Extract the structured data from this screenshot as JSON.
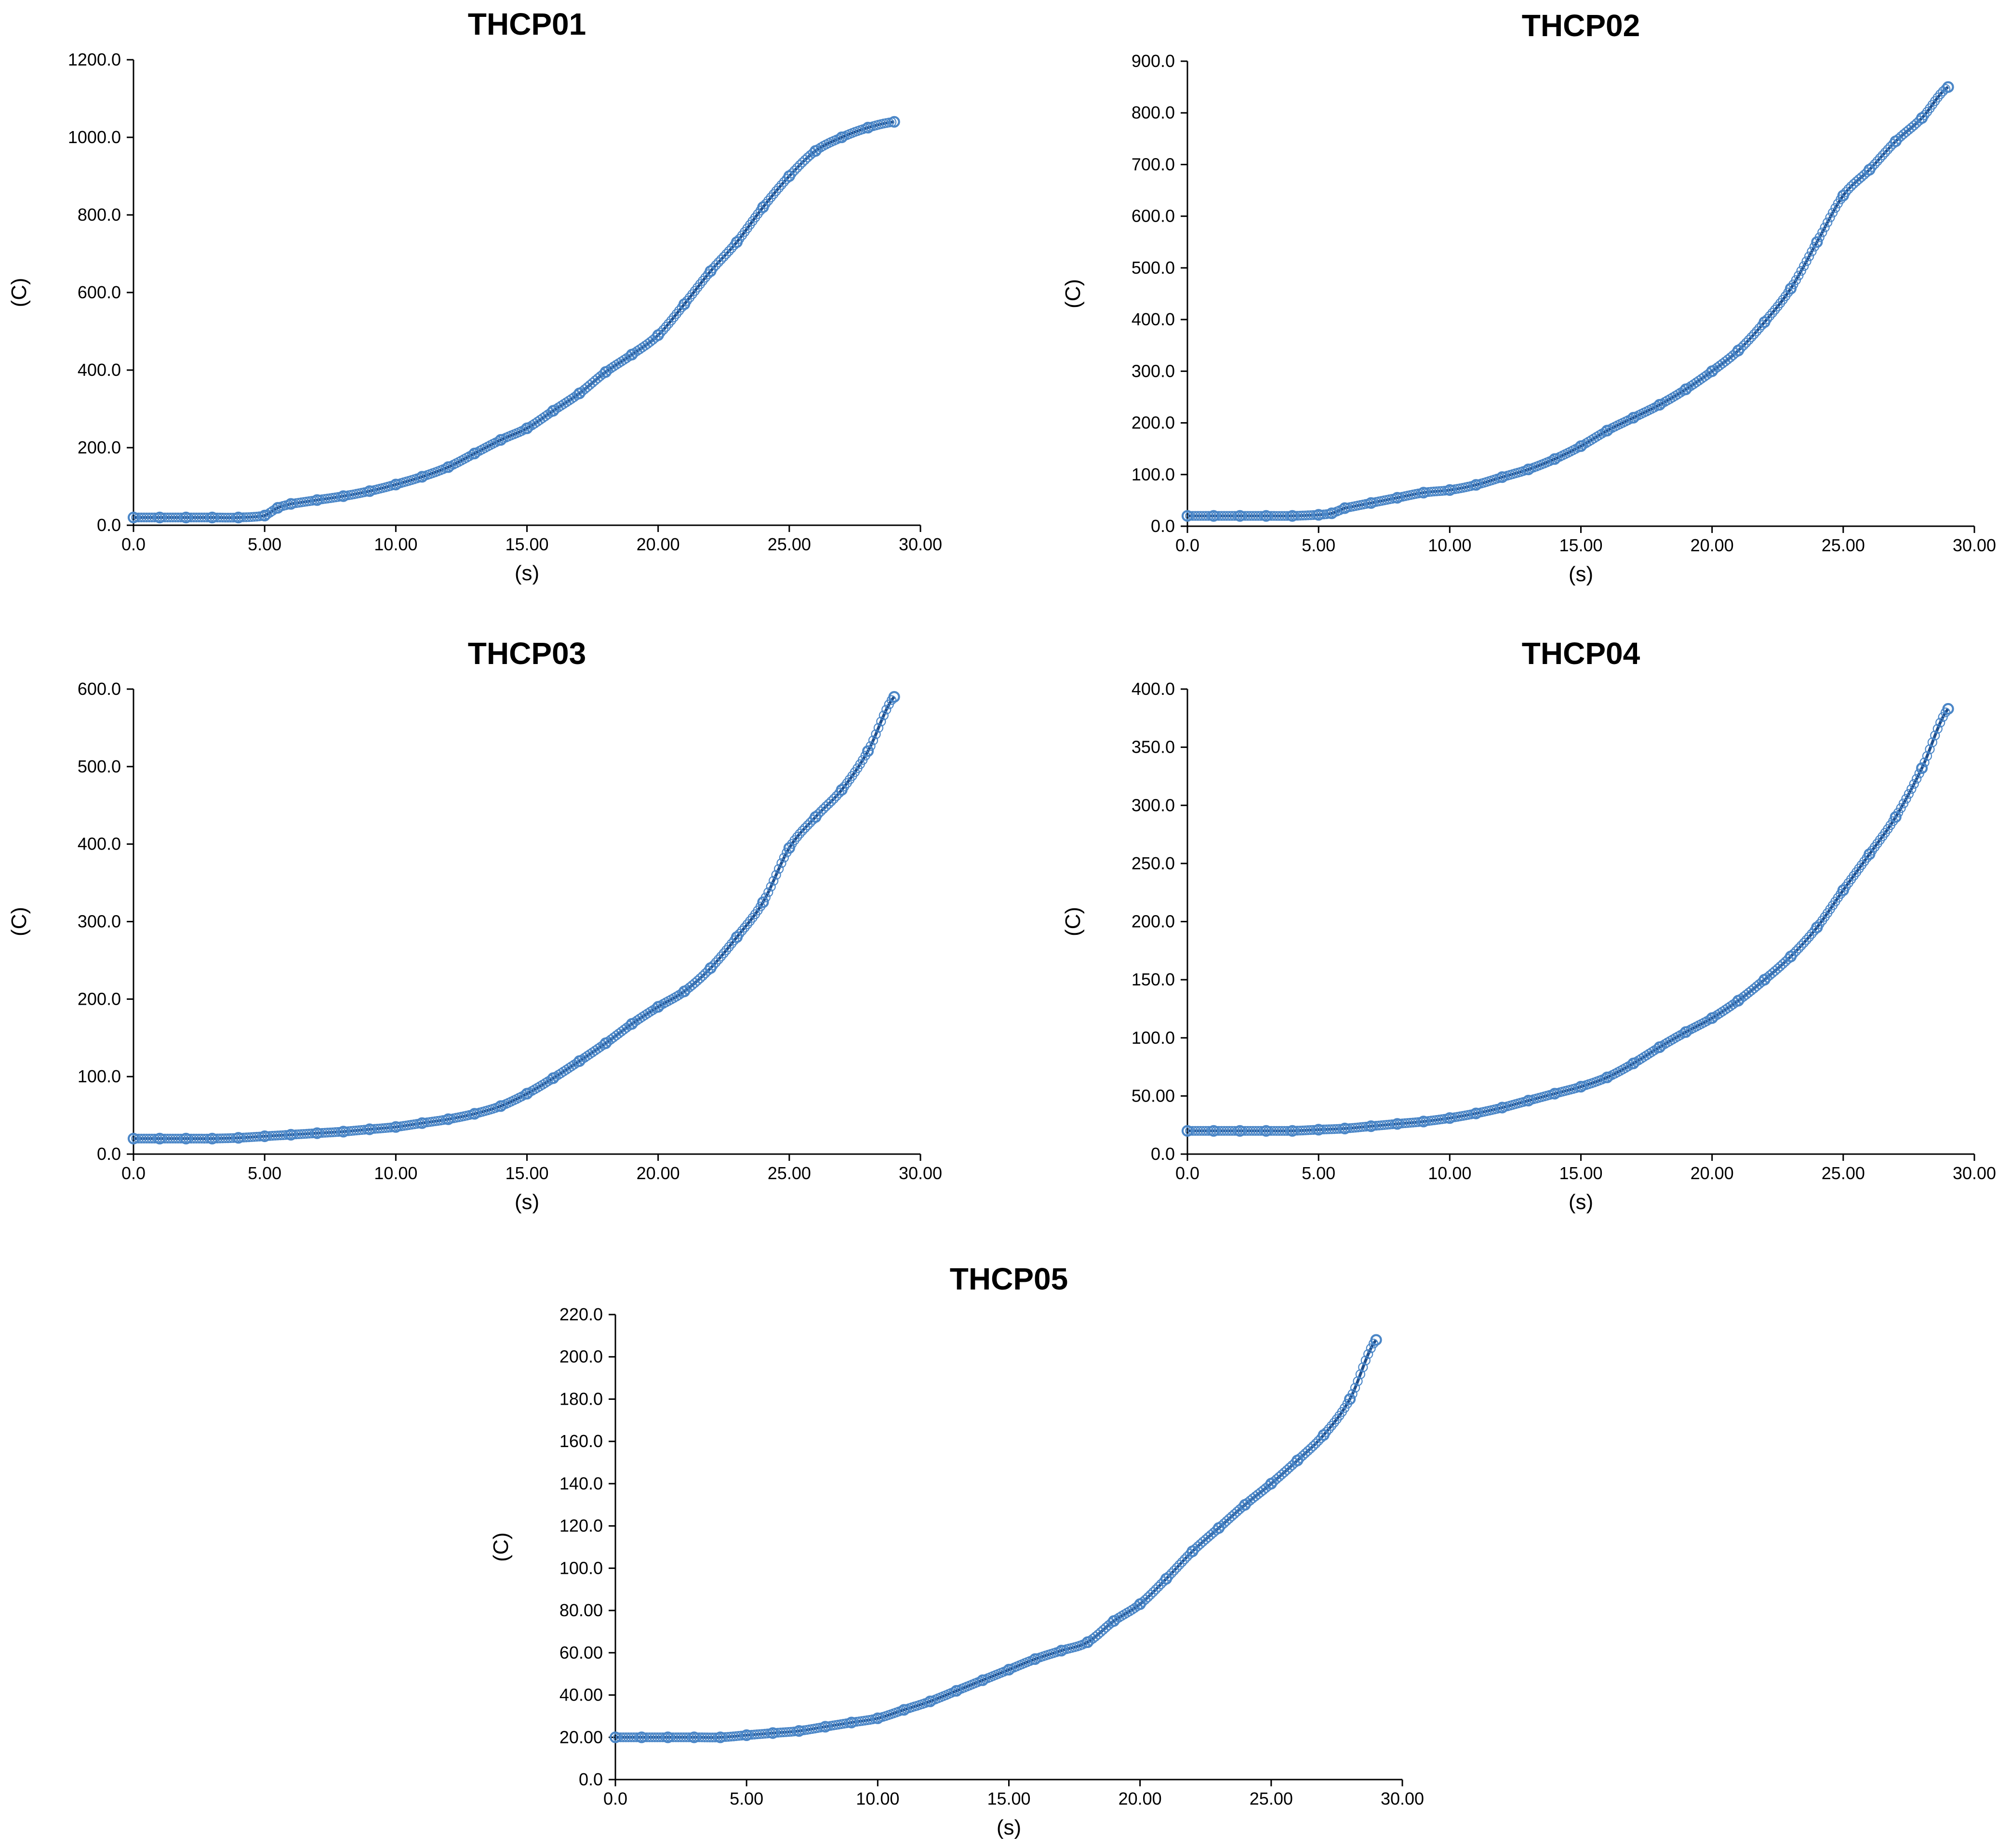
{
  "chart_data": [
    {
      "type": "line",
      "title": "THCP01",
      "xlabel": "(s)",
      "ylabel": "(C)",
      "xlim": [
        0,
        30
      ],
      "ylim": [
        0,
        1200
      ],
      "xticks": [
        "0.0",
        "5.00",
        "10.00",
        "15.00",
        "20.00",
        "25.00",
        "30.00"
      ],
      "yticks": [
        "0.0",
        "200.0",
        "400.0",
        "600.0",
        "800.0",
        "1000.0",
        "1200.0"
      ],
      "grid": false,
      "series": [
        {
          "x": [
            0,
            1,
            2,
            3,
            4,
            5,
            5.5,
            6,
            7,
            8,
            9,
            10,
            11,
            12,
            13,
            14,
            15,
            16,
            17,
            18,
            19,
            20,
            21,
            22,
            23,
            24,
            25,
            26,
            27,
            28,
            29
          ],
          "y": [
            20,
            20,
            20,
            20,
            20,
            25,
            45,
            55,
            65,
            75,
            88,
            105,
            125,
            150,
            185,
            220,
            250,
            295,
            340,
            395,
            440,
            490,
            570,
            655,
            730,
            820,
            900,
            965,
            1000,
            1025,
            1040
          ]
        }
      ]
    },
    {
      "type": "line",
      "title": "THCP02",
      "xlabel": "(s)",
      "ylabel": "(C)",
      "xlim": [
        0,
        30
      ],
      "ylim": [
        0,
        900
      ],
      "xticks": [
        "0.0",
        "5.00",
        "10.00",
        "15.00",
        "20.00",
        "25.00",
        "30.00"
      ],
      "yticks": [
        "0.0",
        "100.0",
        "200.0",
        "300.0",
        "400.0",
        "500.0",
        "600.0",
        "700.0",
        "800.0",
        "900.0"
      ],
      "grid": false,
      "series": [
        {
          "x": [
            0,
            1,
            2,
            3,
            4,
            5,
            5.5,
            6,
            7,
            8,
            9,
            10,
            11,
            12,
            13,
            14,
            15,
            16,
            17,
            18,
            19,
            20,
            21,
            22,
            23,
            24,
            25,
            26,
            27,
            28,
            29
          ],
          "y": [
            20,
            20,
            20,
            20,
            20,
            22,
            25,
            35,
            45,
            55,
            65,
            70,
            80,
            95,
            110,
            130,
            155,
            185,
            210,
            235,
            265,
            300,
            340,
            395,
            460,
            550,
            640,
            690,
            745,
            790,
            850
          ]
        }
      ]
    },
    {
      "type": "line",
      "title": "THCP03",
      "xlabel": "(s)",
      "ylabel": "(C)",
      "xlim": [
        0,
        30
      ],
      "ylim": [
        0,
        600
      ],
      "xticks": [
        "0.0",
        "5.00",
        "10.00",
        "15.00",
        "20.00",
        "25.00",
        "30.00"
      ],
      "yticks": [
        "0.0",
        "100.0",
        "200.0",
        "300.0",
        "400.0",
        "500.0",
        "600.0"
      ],
      "grid": false,
      "series": [
        {
          "x": [
            0,
            1,
            2,
            3,
            4,
            5,
            6,
            7,
            8,
            9,
            10,
            11,
            12,
            13,
            14,
            15,
            16,
            17,
            18,
            19,
            20,
            21,
            22,
            23,
            24,
            25,
            26,
            27,
            28,
            29
          ],
          "y": [
            20,
            20,
            20,
            20,
            21,
            23,
            25,
            27,
            29,
            32,
            35,
            40,
            45,
            52,
            62,
            78,
            98,
            120,
            143,
            168,
            190,
            210,
            240,
            280,
            325,
            395,
            435,
            470,
            520,
            590
          ]
        }
      ]
    },
    {
      "type": "line",
      "title": "THCP04",
      "xlabel": "(s)",
      "ylabel": "(C)",
      "xlim": [
        0,
        30
      ],
      "ylim": [
        0,
        400
      ],
      "xticks": [
        "0.0",
        "5.00",
        "10.00",
        "15.00",
        "20.00",
        "25.00",
        "30.00"
      ],
      "yticks": [
        "0.0",
        "50.00",
        "100.0",
        "150.0",
        "200.0",
        "250.0",
        "300.0",
        "350.0",
        "400.0"
      ],
      "grid": false,
      "series": [
        {
          "x": [
            0,
            1,
            2,
            3,
            4,
            5,
            6,
            7,
            8,
            9,
            10,
            11,
            12,
            13,
            14,
            15,
            16,
            17,
            18,
            19,
            20,
            21,
            22,
            23,
            24,
            25,
            26,
            27,
            28,
            29
          ],
          "y": [
            20,
            20,
            20,
            20,
            20,
            21,
            22,
            24,
            26,
            28,
            31,
            35,
            40,
            46,
            52,
            58,
            66,
            78,
            92,
            105,
            117,
            132,
            150,
            170,
            195,
            227,
            258,
            290,
            332,
            383
          ]
        }
      ]
    },
    {
      "type": "line",
      "title": "THCP05",
      "xlabel": "(s)",
      "ylabel": "(C)",
      "xlim": [
        0,
        30
      ],
      "ylim": [
        0,
        220
      ],
      "xticks": [
        "0.0",
        "5.00",
        "10.00",
        "15.00",
        "20.00",
        "25.00",
        "30.00"
      ],
      "yticks": [
        "0.0",
        "20.00",
        "40.00",
        "60.00",
        "80.00",
        "100.0",
        "120.0",
        "140.0",
        "160.0",
        "180.0",
        "200.0",
        "220.0"
      ],
      "grid": false,
      "series": [
        {
          "x": [
            0,
            1,
            2,
            3,
            4,
            5,
            6,
            7,
            8,
            9,
            10,
            11,
            12,
            13,
            14,
            15,
            16,
            17,
            18,
            19,
            20,
            21,
            22,
            23,
            24,
            25,
            26,
            27,
            28,
            29
          ],
          "y": [
            20,
            20,
            20,
            20,
            20,
            21,
            22,
            23,
            25,
            27,
            29,
            33,
            37,
            42,
            47,
            52,
            57,
            61,
            65,
            75,
            83,
            95,
            108,
            119,
            130,
            140,
            151,
            163,
            180,
            208
          ]
        }
      ]
    }
  ]
}
